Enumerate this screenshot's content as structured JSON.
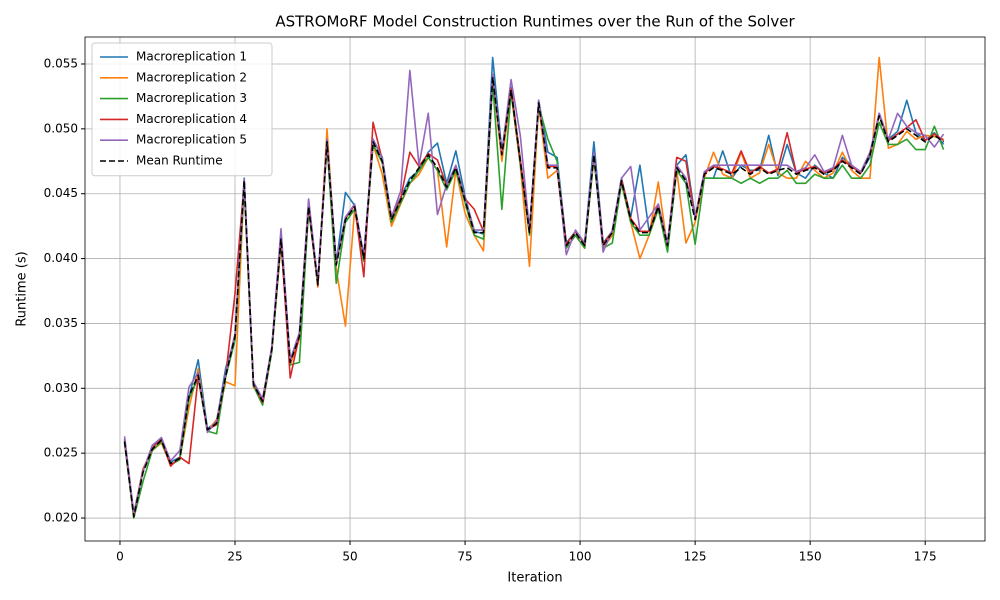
{
  "chart_data": {
    "type": "line",
    "title": "ASTROMoRF Model Construction Runtimes over the Run of the Solver",
    "xlabel": "Iteration",
    "ylabel": "Runtime (s)",
    "x": [
      1,
      3,
      5,
      7,
      9,
      11,
      13,
      15,
      17,
      19,
      21,
      23,
      25,
      27,
      29,
      31,
      33,
      35,
      37,
      39,
      41,
      43,
      45,
      47,
      49,
      51,
      53,
      55,
      57,
      59,
      61,
      63,
      65,
      67,
      69,
      71,
      73,
      75,
      77,
      79,
      81,
      83,
      85,
      87,
      89,
      91,
      93,
      95,
      97,
      99,
      101,
      103,
      105,
      107,
      109,
      111,
      113,
      115,
      117,
      119,
      121,
      123,
      125,
      127,
      129,
      131,
      133,
      135,
      137,
      139,
      141,
      143,
      145,
      147,
      149,
      151,
      153,
      155,
      157,
      159,
      161,
      163,
      165,
      167,
      169,
      171,
      173,
      175,
      177,
      179
    ],
    "series": [
      {
        "name": "Macroreplication 1",
        "color": "#1f77b4",
        "dash": false,
        "values": [
          0.0261,
          0.0202,
          0.0236,
          0.0254,
          0.0262,
          0.0243,
          0.0247,
          0.0293,
          0.0322,
          0.0269,
          0.0274,
          0.0316,
          0.0338,
          0.0462,
          0.0304,
          0.0291,
          0.0331,
          0.0418,
          0.0321,
          0.0342,
          0.0442,
          0.0382,
          0.0492,
          0.0396,
          0.0451,
          0.0441,
          0.0402,
          0.0492,
          0.0478,
          0.0432,
          0.0447,
          0.0462,
          0.0468,
          0.0482,
          0.0489,
          0.0458,
          0.0483,
          0.0448,
          0.0421,
          0.0419,
          0.0555,
          0.0483,
          0.0532,
          0.0477,
          0.0421,
          0.0522,
          0.0482,
          0.0478,
          0.0412,
          0.0421,
          0.0412,
          0.049,
          0.0412,
          0.0421,
          0.0462,
          0.0432,
          0.0472,
          0.0421,
          0.0442,
          0.0412,
          0.0472,
          0.048,
          0.0432,
          0.0462,
          0.0462,
          0.0483,
          0.0462,
          0.0472,
          0.0468,
          0.0468,
          0.0495,
          0.0464,
          0.0488,
          0.0466,
          0.0462,
          0.0472,
          0.0466,
          0.0462,
          0.0478,
          0.0472,
          0.0466,
          0.0478,
          0.0512,
          0.0492,
          0.0498,
          0.0522,
          0.0497,
          0.0491,
          0.0497,
          0.0488
        ]
      },
      {
        "name": "Macroreplication 2",
        "color": "#ff7f0e",
        "dash": false,
        "values": [
          0.0258,
          0.0203,
          0.0238,
          0.0252,
          0.0258,
          0.0241,
          0.0245,
          0.0285,
          0.0315,
          0.0267,
          0.0276,
          0.0305,
          0.0302,
          0.0458,
          0.0301,
          0.0292,
          0.0329,
          0.0412,
          0.0318,
          0.0338,
          0.0445,
          0.0378,
          0.05,
          0.0392,
          0.0348,
          0.0438,
          0.0398,
          0.0488,
          0.0465,
          0.0425,
          0.0442,
          0.0458,
          0.0465,
          0.0478,
          0.0468,
          0.0409,
          0.0468,
          0.0435,
          0.0418,
          0.0406,
          0.054,
          0.0475,
          0.0528,
          0.0472,
          0.0394,
          0.0518,
          0.0462,
          0.0468,
          0.0408,
          0.0418,
          0.0408,
          0.0478,
          0.0408,
          0.0418,
          0.0458,
          0.0428,
          0.04,
          0.0418,
          0.0459,
          0.0408,
          0.0468,
          0.0412,
          0.0428,
          0.0462,
          0.0482,
          0.0465,
          0.0462,
          0.0482,
          0.0462,
          0.0466,
          0.0488,
          0.0466,
          0.0462,
          0.0462,
          0.0475,
          0.0468,
          0.0462,
          0.0466,
          0.0482,
          0.0468,
          0.0462,
          0.0462,
          0.0555,
          0.0485,
          0.0488,
          0.0498,
          0.0492,
          0.0495,
          0.0494,
          0.0492
        ]
      },
      {
        "name": "Macroreplication 3",
        "color": "#2ca02c",
        "dash": false,
        "values": [
          0.0258,
          0.02,
          0.0228,
          0.0252,
          0.0259,
          0.0241,
          0.0245,
          0.0292,
          0.0308,
          0.0267,
          0.0265,
          0.0309,
          0.0337,
          0.0455,
          0.0302,
          0.0287,
          0.0328,
          0.0413,
          0.0318,
          0.032,
          0.0438,
          0.0379,
          0.0488,
          0.0381,
          0.0428,
          0.0438,
          0.0398,
          0.0488,
          0.0474,
          0.0428,
          0.0443,
          0.0458,
          0.0468,
          0.0478,
          0.0468,
          0.0453,
          0.0468,
          0.0443,
          0.0418,
          0.0415,
          0.0535,
          0.0438,
          0.0528,
          0.0473,
          0.0418,
          0.0518,
          0.0492,
          0.0475,
          0.0408,
          0.0418,
          0.0408,
          0.0478,
          0.0408,
          0.0412,
          0.0458,
          0.0428,
          0.0418,
          0.0418,
          0.0438,
          0.0405,
          0.0468,
          0.0458,
          0.0411,
          0.0462,
          0.0462,
          0.0462,
          0.0462,
          0.0458,
          0.0462,
          0.0458,
          0.0462,
          0.0462,
          0.0468,
          0.0458,
          0.0458,
          0.0465,
          0.0462,
          0.0462,
          0.0472,
          0.0462,
          0.0462,
          0.0472,
          0.0505,
          0.0488,
          0.0488,
          0.0492,
          0.0484,
          0.0484,
          0.0502,
          0.0484
        ]
      },
      {
        "name": "Macroreplication 4",
        "color": "#d62728",
        "dash": false,
        "values": [
          0.026,
          0.0202,
          0.0237,
          0.0254,
          0.0261,
          0.024,
          0.0247,
          0.0242,
          0.0309,
          0.0268,
          0.0272,
          0.0311,
          0.0373,
          0.0459,
          0.0304,
          0.0289,
          0.0331,
          0.0416,
          0.0308,
          0.0341,
          0.0441,
          0.0379,
          0.0491,
          0.0396,
          0.0431,
          0.0441,
          0.0386,
          0.0505,
          0.0476,
          0.0431,
          0.0446,
          0.0482,
          0.0471,
          0.0481,
          0.0476,
          0.0456,
          0.0471,
          0.0446,
          0.0438,
          0.0421,
          0.0541,
          0.0481,
          0.0531,
          0.0476,
          0.0421,
          0.0521,
          0.0471,
          0.0471,
          0.0411,
          0.0421,
          0.0411,
          0.0481,
          0.0411,
          0.0421,
          0.0461,
          0.0431,
          0.0421,
          0.0421,
          0.0441,
          0.0411,
          0.0478,
          0.0475,
          0.0431,
          0.0466,
          0.0471,
          0.0469,
          0.0466,
          0.0483,
          0.0466,
          0.0471,
          0.0466,
          0.0469,
          0.0497,
          0.0466,
          0.0469,
          0.0471,
          0.0466,
          0.0469,
          0.0476,
          0.0471,
          0.0466,
          0.0481,
          0.0511,
          0.0491,
          0.0496,
          0.0501,
          0.0507,
          0.0491,
          0.0496,
          0.0491
        ]
      },
      {
        "name": "Macroreplication 5",
        "color": "#9467bd",
        "dash": false,
        "values": [
          0.0263,
          0.0204,
          0.0236,
          0.0256,
          0.0262,
          0.0244,
          0.0252,
          0.0301,
          0.0312,
          0.0266,
          0.0275,
          0.0312,
          0.0342,
          0.0461,
          0.0305,
          0.0292,
          0.0332,
          0.0423,
          0.0322,
          0.0343,
          0.0446,
          0.0382,
          0.0492,
          0.0398,
          0.0432,
          0.0442,
          0.0402,
          0.0492,
          0.0477,
          0.0432,
          0.0452,
          0.0545,
          0.0472,
          0.0512,
          0.0434,
          0.0457,
          0.0472,
          0.0447,
          0.0422,
          0.0422,
          0.0542,
          0.0482,
          0.0538,
          0.0495,
          0.0422,
          0.0522,
          0.0472,
          0.0472,
          0.0403,
          0.0422,
          0.0412,
          0.0482,
          0.0405,
          0.0422,
          0.0462,
          0.0471,
          0.0422,
          0.0432,
          0.0442,
          0.0412,
          0.0472,
          0.0462,
          0.0432,
          0.0467,
          0.0472,
          0.0472,
          0.0472,
          0.0472,
          0.0472,
          0.0472,
          0.0472,
          0.0472,
          0.0472,
          0.0467,
          0.047,
          0.048,
          0.0467,
          0.047,
          0.0495,
          0.0472,
          0.0467,
          0.0482,
          0.0512,
          0.0492,
          0.0512,
          0.0502,
          0.0497,
          0.0495,
          0.0486,
          0.0496
        ]
      },
      {
        "name": "Mean Runtime",
        "color": "#000000",
        "dash": true,
        "values": [
          0.0259,
          0.0201,
          0.0235,
          0.0253,
          0.026,
          0.0242,
          0.0246,
          0.0294,
          0.031,
          0.0268,
          0.0273,
          0.031,
          0.034,
          0.046,
          0.0303,
          0.029,
          0.033,
          0.0415,
          0.032,
          0.034,
          0.044,
          0.038,
          0.049,
          0.0395,
          0.043,
          0.044,
          0.04,
          0.049,
          0.0475,
          0.043,
          0.0445,
          0.046,
          0.047,
          0.048,
          0.047,
          0.0455,
          0.047,
          0.0445,
          0.042,
          0.042,
          0.054,
          0.048,
          0.053,
          0.0475,
          0.042,
          0.052,
          0.047,
          0.047,
          0.041,
          0.042,
          0.041,
          0.048,
          0.041,
          0.042,
          0.046,
          0.043,
          0.042,
          0.042,
          0.044,
          0.041,
          0.047,
          0.046,
          0.043,
          0.0465,
          0.047,
          0.0468,
          0.0465,
          0.047,
          0.0465,
          0.047,
          0.0465,
          0.0468,
          0.047,
          0.0465,
          0.0468,
          0.047,
          0.0465,
          0.0468,
          0.0475,
          0.047,
          0.0465,
          0.048,
          0.051,
          0.049,
          0.0495,
          0.05,
          0.0495,
          0.049,
          0.0495,
          0.049
        ]
      }
    ],
    "xlim": [
      -7.6,
      188
    ],
    "ylim": [
      0.01823,
      0.05708
    ],
    "xticks": [
      0,
      25,
      50,
      75,
      100,
      125,
      150,
      175
    ],
    "yticks": [
      {
        "value": 0.02,
        "label": "0.020"
      },
      {
        "value": 0.025,
        "label": "0.025"
      },
      {
        "value": 0.03,
        "label": "0.030"
      },
      {
        "value": 0.035,
        "label": "0.035"
      },
      {
        "value": 0.04,
        "label": "0.040"
      },
      {
        "value": 0.045,
        "label": "0.045"
      },
      {
        "value": 0.05,
        "label": "0.050"
      },
      {
        "value": 0.055,
        "label": "0.055"
      }
    ],
    "grid": true,
    "legend": "upper-left"
  }
}
